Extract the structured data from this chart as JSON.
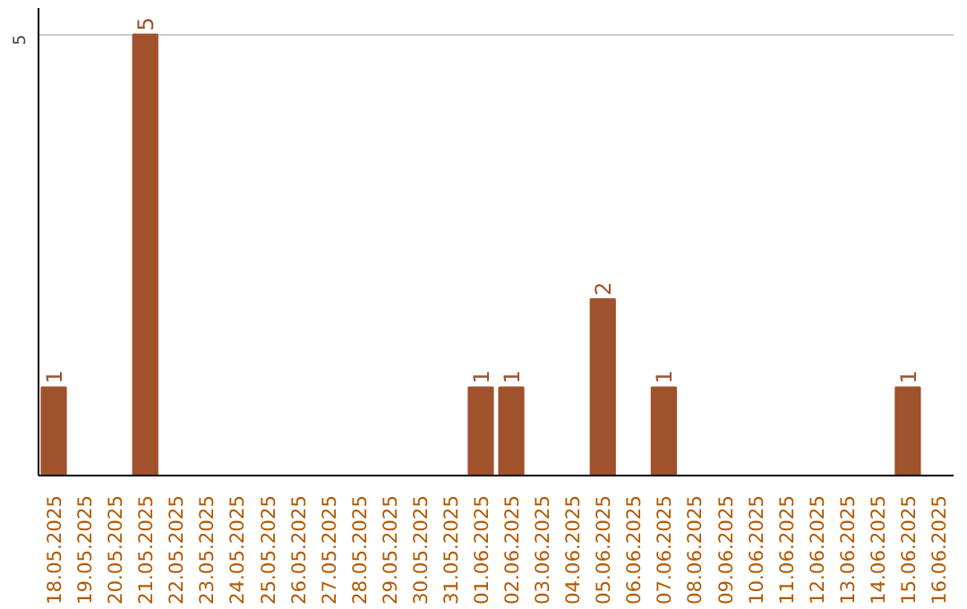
{
  "chart_data": {
    "type": "bar",
    "categories": [
      "18.05.2025",
      "19.05.2025",
      "20.05.2025",
      "21.05.2025",
      "22.05.2025",
      "23.05.2025",
      "24.05.2025",
      "25.05.2025",
      "26.05.2025",
      "27.05.2025",
      "28.05.2025",
      "29.05.2025",
      "30.05.2025",
      "31.05.2025",
      "01.06.2025",
      "02.06.2025",
      "03.06.2025",
      "04.06.2025",
      "05.06.2025",
      "06.06.2025",
      "07.06.2025",
      "08.06.2025",
      "09.06.2025",
      "10.06.2025",
      "11.06.2025",
      "12.06.2025",
      "13.06.2025",
      "14.06.2025",
      "15.06.2025",
      "16.06.2025"
    ],
    "values": [
      1,
      0,
      0,
      5,
      0,
      0,
      0,
      0,
      0,
      0,
      0,
      0,
      0,
      0,
      1,
      1,
      0,
      0,
      2,
      0,
      1,
      0,
      0,
      0,
      0,
      0,
      0,
      0,
      1,
      0
    ],
    "color": "#a0522d",
    "ylim": [
      0,
      5.3
    ],
    "yticks": [
      5
    ],
    "grid": "y",
    "value_labels": [
      "1",
      null,
      null,
      "5",
      null,
      null,
      null,
      null,
      null,
      null,
      null,
      null,
      null,
      null,
      "1",
      "1",
      null,
      null,
      "2",
      null,
      "1",
      null,
      null,
      null,
      null,
      null,
      null,
      null,
      "1",
      null
    ]
  }
}
